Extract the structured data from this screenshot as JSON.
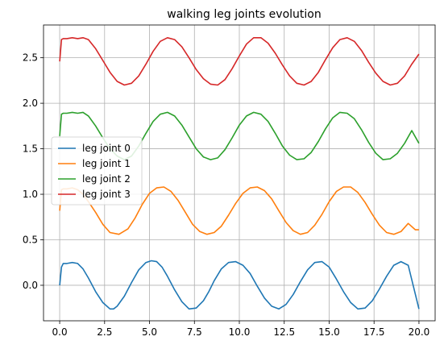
{
  "chart_data": {
    "type": "line",
    "title": "walking leg joints evolution",
    "xlabel": "",
    "ylabel": "",
    "xlim": [
      -0.9,
      20.9
    ],
    "ylim": [
      -0.39,
      2.86
    ],
    "xticks": [
      0,
      2.5,
      5,
      7.5,
      10,
      12.5,
      15,
      17.5,
      20
    ],
    "xtick_labels": [
      "0.0",
      "2.5",
      "5.0",
      "7.5",
      "10.0",
      "12.5",
      "15.0",
      "17.5",
      "20.0"
    ],
    "yticks": [
      0,
      0.5,
      1,
      1.5,
      2,
      2.5
    ],
    "ytick_labels": [
      "0.0",
      "0.5",
      "1.0",
      "1.5",
      "2.0",
      "2.5"
    ],
    "grid": true,
    "legend_position": "center-left",
    "series": [
      {
        "name": "leg joint 0",
        "color": "#1f77b4",
        "offset": 0.0,
        "x": [
          0,
          0.1,
          0.2,
          0.4,
          0.7,
          1.0,
          1.3,
          1.6,
          2.0,
          2.4,
          2.8,
          3.0,
          3.2,
          3.6,
          4.0,
          4.4,
          4.8,
          5.1,
          5.4,
          5.7,
          6.0,
          6.4,
          6.8,
          7.2,
          7.6,
          8.0,
          8.3,
          8.6,
          9.0,
          9.4,
          9.8,
          10.2,
          10.6,
          11.0,
          11.4,
          11.8,
          12.2,
          12.6,
          13.0,
          13.4,
          13.8,
          14.2,
          14.6,
          15.0,
          15.4,
          15.8,
          16.2,
          16.6,
          17.0,
          17.4,
          17.8,
          18.2,
          18.6,
          19.0,
          19.4,
          19.8,
          20.0
        ],
        "y": [
          0.0,
          0.2,
          0.24,
          0.24,
          0.25,
          0.24,
          0.18,
          0.08,
          -0.07,
          -0.19,
          -0.26,
          -0.26,
          -0.23,
          -0.12,
          0.03,
          0.17,
          0.25,
          0.27,
          0.26,
          0.2,
          0.1,
          -0.05,
          -0.18,
          -0.26,
          -0.25,
          -0.17,
          -0.07,
          0.05,
          0.18,
          0.25,
          0.26,
          0.22,
          0.13,
          -0.01,
          -0.14,
          -0.23,
          -0.26,
          -0.21,
          -0.1,
          0.04,
          0.17,
          0.25,
          0.26,
          0.2,
          0.07,
          -0.07,
          -0.19,
          -0.26,
          -0.25,
          -0.17,
          -0.04,
          0.1,
          0.22,
          0.26,
          0.22,
          -0.1,
          -0.26
        ]
      },
      {
        "name": "leg joint 1",
        "color": "#ff7f0e",
        "offset": 0.82,
        "x": [
          0,
          0.1,
          0.2,
          0.4,
          0.7,
          1.0,
          1.3,
          1.6,
          2.0,
          2.4,
          2.8,
          3.3,
          3.8,
          4.2,
          4.6,
          5.0,
          5.4,
          5.8,
          6.2,
          6.6,
          7.0,
          7.4,
          7.8,
          8.2,
          8.6,
          9.0,
          9.4,
          9.8,
          10.2,
          10.6,
          11.0,
          11.4,
          11.8,
          12.2,
          12.6,
          13.0,
          13.4,
          13.8,
          14.2,
          14.6,
          15.0,
          15.4,
          15.8,
          16.2,
          16.6,
          17.0,
          17.4,
          17.8,
          18.2,
          18.6,
          19.0,
          19.4,
          19.8,
          20.0
        ],
        "y": [
          0.82,
          1.05,
          1.06,
          1.06,
          1.07,
          1.05,
          1.0,
          0.92,
          0.8,
          0.67,
          0.58,
          0.56,
          0.62,
          0.74,
          0.89,
          1.01,
          1.07,
          1.08,
          1.03,
          0.93,
          0.8,
          0.67,
          0.59,
          0.56,
          0.58,
          0.65,
          0.77,
          0.9,
          1.01,
          1.07,
          1.08,
          1.04,
          0.95,
          0.82,
          0.69,
          0.6,
          0.56,
          0.58,
          0.66,
          0.78,
          0.92,
          1.03,
          1.08,
          1.08,
          1.02,
          0.91,
          0.78,
          0.66,
          0.58,
          0.56,
          0.59,
          0.68,
          0.61,
          0.61
        ]
      },
      {
        "name": "leg joint 2",
        "color": "#2ca02c",
        "offset": 1.64,
        "x": [
          0,
          0.1,
          0.2,
          0.4,
          0.7,
          1.0,
          1.3,
          1.6,
          2.0,
          2.4,
          2.8,
          3.2,
          3.6,
          4.0,
          4.4,
          4.8,
          5.2,
          5.6,
          6.0,
          6.4,
          6.8,
          7.2,
          7.6,
          8.0,
          8.4,
          8.8,
          9.2,
          9.6,
          10.0,
          10.4,
          10.8,
          11.2,
          11.6,
          12.0,
          12.4,
          12.8,
          13.2,
          13.6,
          14.0,
          14.4,
          14.8,
          15.2,
          15.6,
          16.0,
          16.4,
          16.8,
          17.2,
          17.6,
          18.0,
          18.4,
          18.8,
          19.2,
          19.6,
          20.0
        ],
        "y": [
          1.64,
          1.88,
          1.89,
          1.89,
          1.9,
          1.89,
          1.9,
          1.86,
          1.75,
          1.62,
          1.5,
          1.42,
          1.38,
          1.42,
          1.53,
          1.67,
          1.8,
          1.88,
          1.9,
          1.86,
          1.76,
          1.63,
          1.5,
          1.41,
          1.38,
          1.4,
          1.49,
          1.62,
          1.76,
          1.86,
          1.9,
          1.88,
          1.8,
          1.67,
          1.53,
          1.43,
          1.38,
          1.39,
          1.46,
          1.58,
          1.72,
          1.84,
          1.9,
          1.89,
          1.83,
          1.71,
          1.57,
          1.45,
          1.38,
          1.39,
          1.45,
          1.56,
          1.7,
          1.56
        ]
      },
      {
        "name": "leg joint 3",
        "color": "#d62728",
        "offset": 2.46,
        "x": [
          0,
          0.1,
          0.2,
          0.4,
          0.7,
          1.0,
          1.3,
          1.6,
          2.0,
          2.4,
          2.8,
          3.2,
          3.6,
          4.0,
          4.4,
          4.8,
          5.2,
          5.6,
          6.0,
          6.4,
          6.8,
          7.2,
          7.6,
          8.0,
          8.4,
          8.8,
          9.2,
          9.6,
          10.0,
          10.4,
          10.8,
          11.2,
          11.6,
          12.0,
          12.4,
          12.8,
          13.2,
          13.6,
          14.0,
          14.4,
          14.8,
          15.2,
          15.6,
          16.0,
          16.4,
          16.8,
          17.2,
          17.6,
          18.0,
          18.4,
          18.8,
          19.2,
          19.6,
          20.0
        ],
        "y": [
          2.46,
          2.7,
          2.71,
          2.71,
          2.72,
          2.71,
          2.72,
          2.7,
          2.6,
          2.47,
          2.34,
          2.24,
          2.2,
          2.22,
          2.3,
          2.43,
          2.57,
          2.68,
          2.72,
          2.7,
          2.62,
          2.5,
          2.37,
          2.27,
          2.21,
          2.2,
          2.26,
          2.38,
          2.52,
          2.65,
          2.72,
          2.72,
          2.66,
          2.55,
          2.42,
          2.3,
          2.22,
          2.2,
          2.24,
          2.34,
          2.48,
          2.61,
          2.7,
          2.72,
          2.68,
          2.58,
          2.45,
          2.33,
          2.24,
          2.2,
          2.22,
          2.3,
          2.43,
          2.54
        ]
      }
    ]
  }
}
